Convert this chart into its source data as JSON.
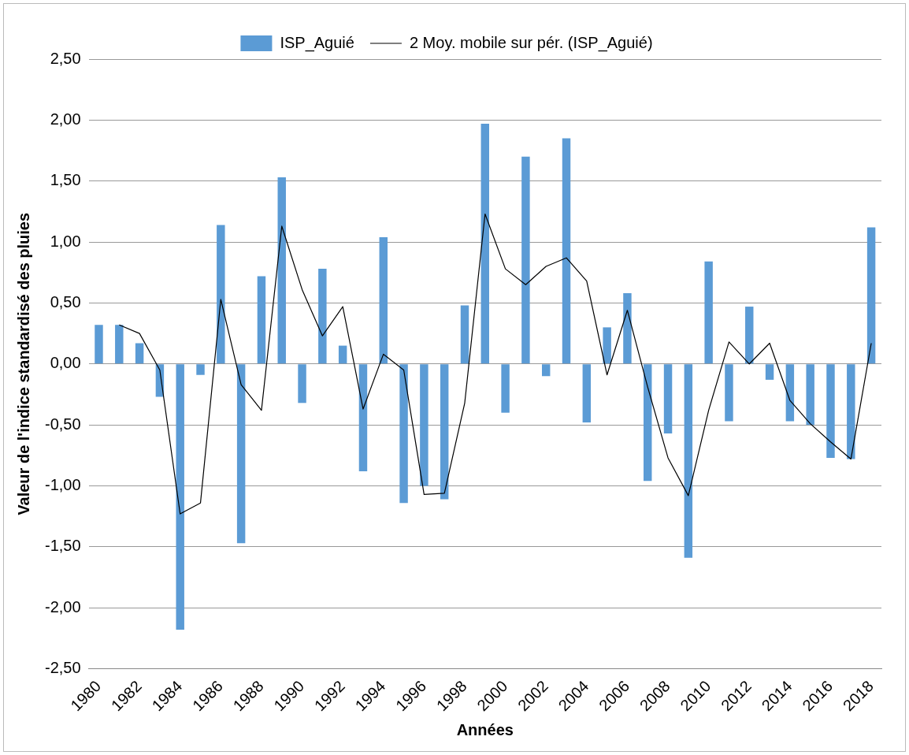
{
  "chart_data": {
    "type": "bar",
    "xlabel": "Années",
    "ylabel": "Valeur de l'indice standardisé des pluies",
    "categories": [
      "1980",
      null,
      "1982",
      null,
      "1984",
      null,
      "1986",
      null,
      "1988",
      null,
      "1990",
      null,
      "1992",
      null,
      "1994",
      null,
      "1996",
      null,
      "1998",
      null,
      "2000",
      null,
      "2002",
      null,
      "2004",
      null,
      "2006",
      null,
      "2008",
      null,
      "2010",
      null,
      "2012",
      null,
      "2014",
      null,
      "2016",
      null,
      "2018"
    ],
    "series": [
      {
        "name": "ISP_Aguié",
        "color": "#5b9bd5",
        "values": [
          0.32,
          0.32,
          0.17,
          -0.27,
          -2.18,
          -0.09,
          1.14,
          -1.47,
          0.72,
          1.53,
          -0.32,
          0.78,
          0.15,
          -0.88,
          1.04,
          -1.14,
          -1.0,
          -1.11,
          0.48,
          1.97,
          -0.4,
          1.7,
          -0.1,
          1.85,
          -0.48,
          0.3,
          0.58,
          -0.96,
          -0.57,
          -1.59,
          0.84,
          -0.47,
          0.47,
          -0.13,
          -0.47,
          -0.5,
          -0.77,
          -0.78,
          1.12
        ]
      },
      {
        "name": "2 Moy. mobile sur pér. (ISP_Aguié)",
        "type": "line",
        "color": "#000000",
        "values": [
          null,
          0.32,
          0.25,
          -0.05,
          -1.23,
          -1.14,
          0.53,
          -0.17,
          -0.38,
          1.13,
          0.61,
          0.23,
          0.47,
          -0.37,
          0.08,
          -0.05,
          -1.07,
          -1.06,
          -0.32,
          1.23,
          0.78,
          0.65,
          0.8,
          0.87,
          0.68,
          -0.09,
          0.44,
          -0.19,
          -0.77,
          -1.08,
          -0.38,
          0.18,
          0.0,
          0.17,
          -0.3,
          -0.49,
          -0.64,
          -0.78,
          0.17
        ]
      }
    ],
    "ylim": [
      -2.5,
      2.5
    ],
    "yticks": [
      {
        "value": -2.5,
        "label": "-2,50"
      },
      {
        "value": -2,
        "label": "-2,00"
      },
      {
        "value": -1.5,
        "label": "-1,50"
      },
      {
        "value": -1,
        "label": "-1,00"
      },
      {
        "value": -0.5,
        "label": "-0,50"
      },
      {
        "value": 0,
        "label": "0,00"
      },
      {
        "value": 0.5,
        "label": "0,50"
      },
      {
        "value": 1,
        "label": "1,00"
      },
      {
        "value": 1.5,
        "label": "1,50"
      },
      {
        "value": 2,
        "label": "2,00"
      },
      {
        "value": 2.5,
        "label": "2,50"
      }
    ],
    "grid": "y",
    "legend": "top",
    "marker": "none",
    "line_style": "solid"
  }
}
